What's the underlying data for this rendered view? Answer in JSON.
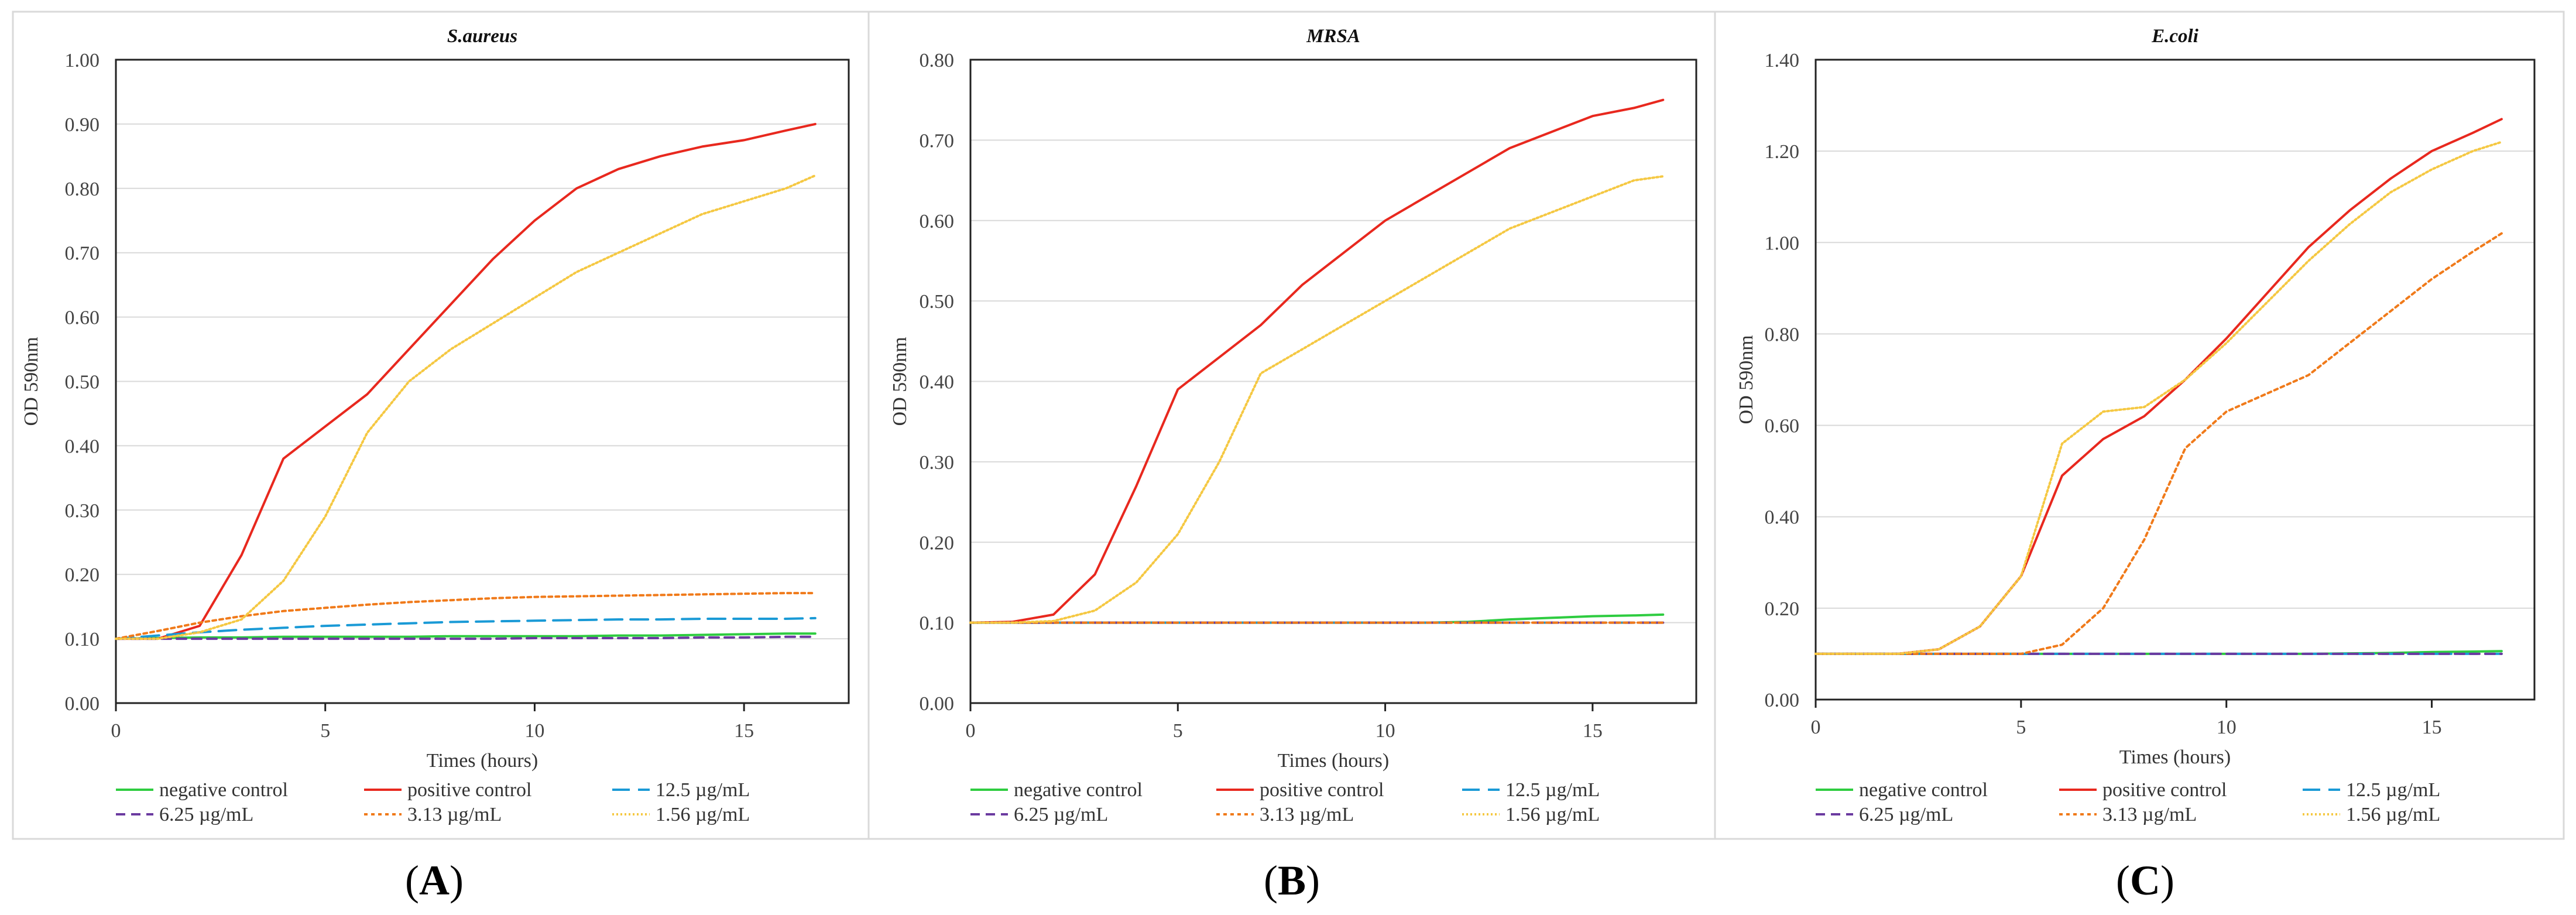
{
  "figure_labels": [
    "A",
    "B",
    "C"
  ],
  "legend": [
    {
      "name": "negative control",
      "color": "#2ecc40",
      "dash": "solid"
    },
    {
      "name": "positive control",
      "color": "#e8281e",
      "dash": "solid"
    },
    {
      "name": "12.5 µg/mL",
      "color": "#1a9ad6",
      "dash": "longdash"
    },
    {
      "name": "6.25 µg/mL",
      "color": "#6b3aa0",
      "dash": "dash"
    },
    {
      "name": "3.13 µg/mL",
      "color": "#f07a1a",
      "dash": "dot"
    },
    {
      "name": "1.56 µg/mL",
      "color": "#f5c842",
      "dash": "finedot"
    }
  ],
  "chart_data": [
    {
      "type": "line",
      "title": "S.aureus",
      "xlabel": "Times (hours)",
      "ylabel": "OD 590nm",
      "xlim": [
        0,
        17.5
      ],
      "ylim": [
        0,
        1.0
      ],
      "xticks": [
        0,
        5,
        10,
        15
      ],
      "yticks": [
        "0.00",
        "0.10",
        "0.20",
        "0.30",
        "0.40",
        "0.50",
        "0.60",
        "0.70",
        "0.80",
        "0.90",
        "1.00"
      ],
      "grid": "horizontal",
      "x": [
        0,
        1,
        2,
        3,
        4,
        5,
        6,
        7,
        8,
        9,
        10,
        11,
        12,
        13,
        14,
        15,
        16,
        16.7
      ],
      "series": [
        {
          "name": "negative control",
          "values": [
            0.1,
            0.101,
            0.102,
            0.102,
            0.103,
            0.103,
            0.103,
            0.103,
            0.104,
            0.104,
            0.104,
            0.104,
            0.105,
            0.105,
            0.106,
            0.107,
            0.108,
            0.108
          ]
        },
        {
          "name": "positive control",
          "values": [
            0.1,
            0.1,
            0.12,
            0.23,
            0.38,
            0.43,
            0.48,
            0.55,
            0.62,
            0.69,
            0.75,
            0.8,
            0.83,
            0.85,
            0.865,
            0.875,
            0.89,
            0.9
          ]
        },
        {
          "name": "12.5 µg/mL",
          "values": [
            0.1,
            0.105,
            0.11,
            0.114,
            0.117,
            0.12,
            0.122,
            0.124,
            0.126,
            0.127,
            0.128,
            0.129,
            0.13,
            0.13,
            0.131,
            0.131,
            0.131,
            0.132
          ]
        },
        {
          "name": "6.25 µg/mL",
          "values": [
            0.1,
            0.1,
            0.1,
            0.1,
            0.1,
            0.1,
            0.1,
            0.1,
            0.1,
            0.1,
            0.101,
            0.101,
            0.101,
            0.101,
            0.102,
            0.102,
            0.103,
            0.103
          ]
        },
        {
          "name": "3.13 µg/mL",
          "values": [
            0.1,
            0.112,
            0.125,
            0.135,
            0.143,
            0.148,
            0.153,
            0.157,
            0.16,
            0.163,
            0.165,
            0.166,
            0.167,
            0.168,
            0.169,
            0.17,
            0.171,
            0.171
          ]
        },
        {
          "name": "1.56 µg/mL",
          "values": [
            0.1,
            0.1,
            0.11,
            0.13,
            0.19,
            0.29,
            0.42,
            0.5,
            0.55,
            0.59,
            0.63,
            0.67,
            0.7,
            0.73,
            0.76,
            0.78,
            0.8,
            0.82
          ]
        }
      ]
    },
    {
      "type": "line",
      "title": "MRSA",
      "xlabel": "Times (hours)",
      "ylabel": "OD 590nm",
      "xlim": [
        0,
        17.5
      ],
      "ylim": [
        0,
        0.8
      ],
      "xticks": [
        0,
        5,
        10,
        15
      ],
      "yticks": [
        "0.00",
        "0.10",
        "0.20",
        "0.30",
        "0.40",
        "0.50",
        "0.60",
        "0.70",
        "0.80"
      ],
      "grid": "horizontal",
      "x": [
        0,
        1,
        2,
        3,
        4,
        5,
        6,
        7,
        8,
        9,
        10,
        11,
        12,
        13,
        14,
        15,
        16,
        16.7
      ],
      "series": [
        {
          "name": "negative control",
          "values": [
            0.1,
            0.1,
            0.1,
            0.1,
            0.1,
            0.1,
            0.1,
            0.1,
            0.1,
            0.1,
            0.1,
            0.1,
            0.101,
            0.104,
            0.106,
            0.108,
            0.109,
            0.11
          ]
        },
        {
          "name": "positive control",
          "values": [
            0.1,
            0.101,
            0.11,
            0.16,
            0.27,
            0.39,
            0.43,
            0.47,
            0.52,
            0.56,
            0.6,
            0.63,
            0.66,
            0.69,
            0.71,
            0.73,
            0.74,
            0.75
          ]
        },
        {
          "name": "12.5 µg/mL",
          "values": [
            0.1,
            0.1,
            0.1,
            0.1,
            0.1,
            0.1,
            0.1,
            0.1,
            0.1,
            0.1,
            0.1,
            0.1,
            0.1,
            0.1,
            0.1,
            0.1,
            0.1,
            0.1
          ]
        },
        {
          "name": "6.25 µg/mL",
          "values": [
            0.1,
            0.1,
            0.1,
            0.1,
            0.1,
            0.1,
            0.1,
            0.1,
            0.1,
            0.1,
            0.1,
            0.1,
            0.1,
            0.1,
            0.1,
            0.1,
            0.1,
            0.1
          ]
        },
        {
          "name": "3.13 µg/mL",
          "values": [
            0.1,
            0.1,
            0.1,
            0.1,
            0.1,
            0.1,
            0.1,
            0.1,
            0.1,
            0.1,
            0.1,
            0.1,
            0.1,
            0.1,
            0.1,
            0.1,
            0.1,
            0.1
          ]
        },
        {
          "name": "1.56 µg/mL",
          "values": [
            0.1,
            0.1,
            0.102,
            0.115,
            0.15,
            0.21,
            0.3,
            0.41,
            0.44,
            0.47,
            0.5,
            0.53,
            0.56,
            0.59,
            0.61,
            0.63,
            0.65,
            0.655
          ]
        }
      ]
    },
    {
      "type": "line",
      "title": "E.coli",
      "xlabel": "Times (hours)",
      "ylabel": "OD 590nm",
      "xlim": [
        0,
        17.5
      ],
      "ylim": [
        0,
        1.4
      ],
      "xticks": [
        0,
        5,
        10,
        15
      ],
      "yticks": [
        "0.00",
        "0.20",
        "0.40",
        "0.60",
        "0.80",
        "1.00",
        "1.20",
        "1.40"
      ],
      "grid": "horizontal",
      "x": [
        0,
        1,
        2,
        3,
        4,
        5,
        6,
        7,
        8,
        9,
        10,
        11,
        12,
        13,
        14,
        15,
        16,
        16.7
      ],
      "series": [
        {
          "name": "negative control",
          "values": [
            0.1,
            0.1,
            0.1,
            0.1,
            0.1,
            0.1,
            0.1,
            0.1,
            0.1,
            0.1,
            0.1,
            0.1,
            0.1,
            0.101,
            0.102,
            0.104,
            0.105,
            0.106
          ]
        },
        {
          "name": "positive control",
          "values": [
            0.1,
            0.1,
            0.1,
            0.11,
            0.16,
            0.27,
            0.49,
            0.57,
            0.62,
            0.7,
            0.79,
            0.89,
            0.99,
            1.07,
            1.14,
            1.2,
            1.24,
            1.27
          ]
        },
        {
          "name": "12.5 µg/mL",
          "values": [
            0.1,
            0.1,
            0.1,
            0.1,
            0.1,
            0.1,
            0.1,
            0.1,
            0.1,
            0.1,
            0.1,
            0.1,
            0.1,
            0.1,
            0.1,
            0.1,
            0.1,
            0.1
          ]
        },
        {
          "name": "6.25 µg/mL",
          "values": [
            0.1,
            0.1,
            0.1,
            0.1,
            0.1,
            0.1,
            0.1,
            0.1,
            0.1,
            0.1,
            0.1,
            0.1,
            0.1,
            0.1,
            0.1,
            0.1,
            0.1,
            0.1
          ]
        },
        {
          "name": "3.13 µg/mL",
          "values": [
            0.1,
            0.1,
            0.1,
            0.1,
            0.1,
            0.1,
            0.12,
            0.2,
            0.35,
            0.55,
            0.63,
            0.67,
            0.71,
            0.78,
            0.85,
            0.92,
            0.98,
            1.02
          ]
        },
        {
          "name": "1.56 µg/mL",
          "values": [
            0.1,
            0.1,
            0.1,
            0.11,
            0.16,
            0.27,
            0.56,
            0.63,
            0.64,
            0.7,
            0.78,
            0.87,
            0.96,
            1.04,
            1.11,
            1.16,
            1.2,
            1.22
          ]
        }
      ]
    }
  ]
}
